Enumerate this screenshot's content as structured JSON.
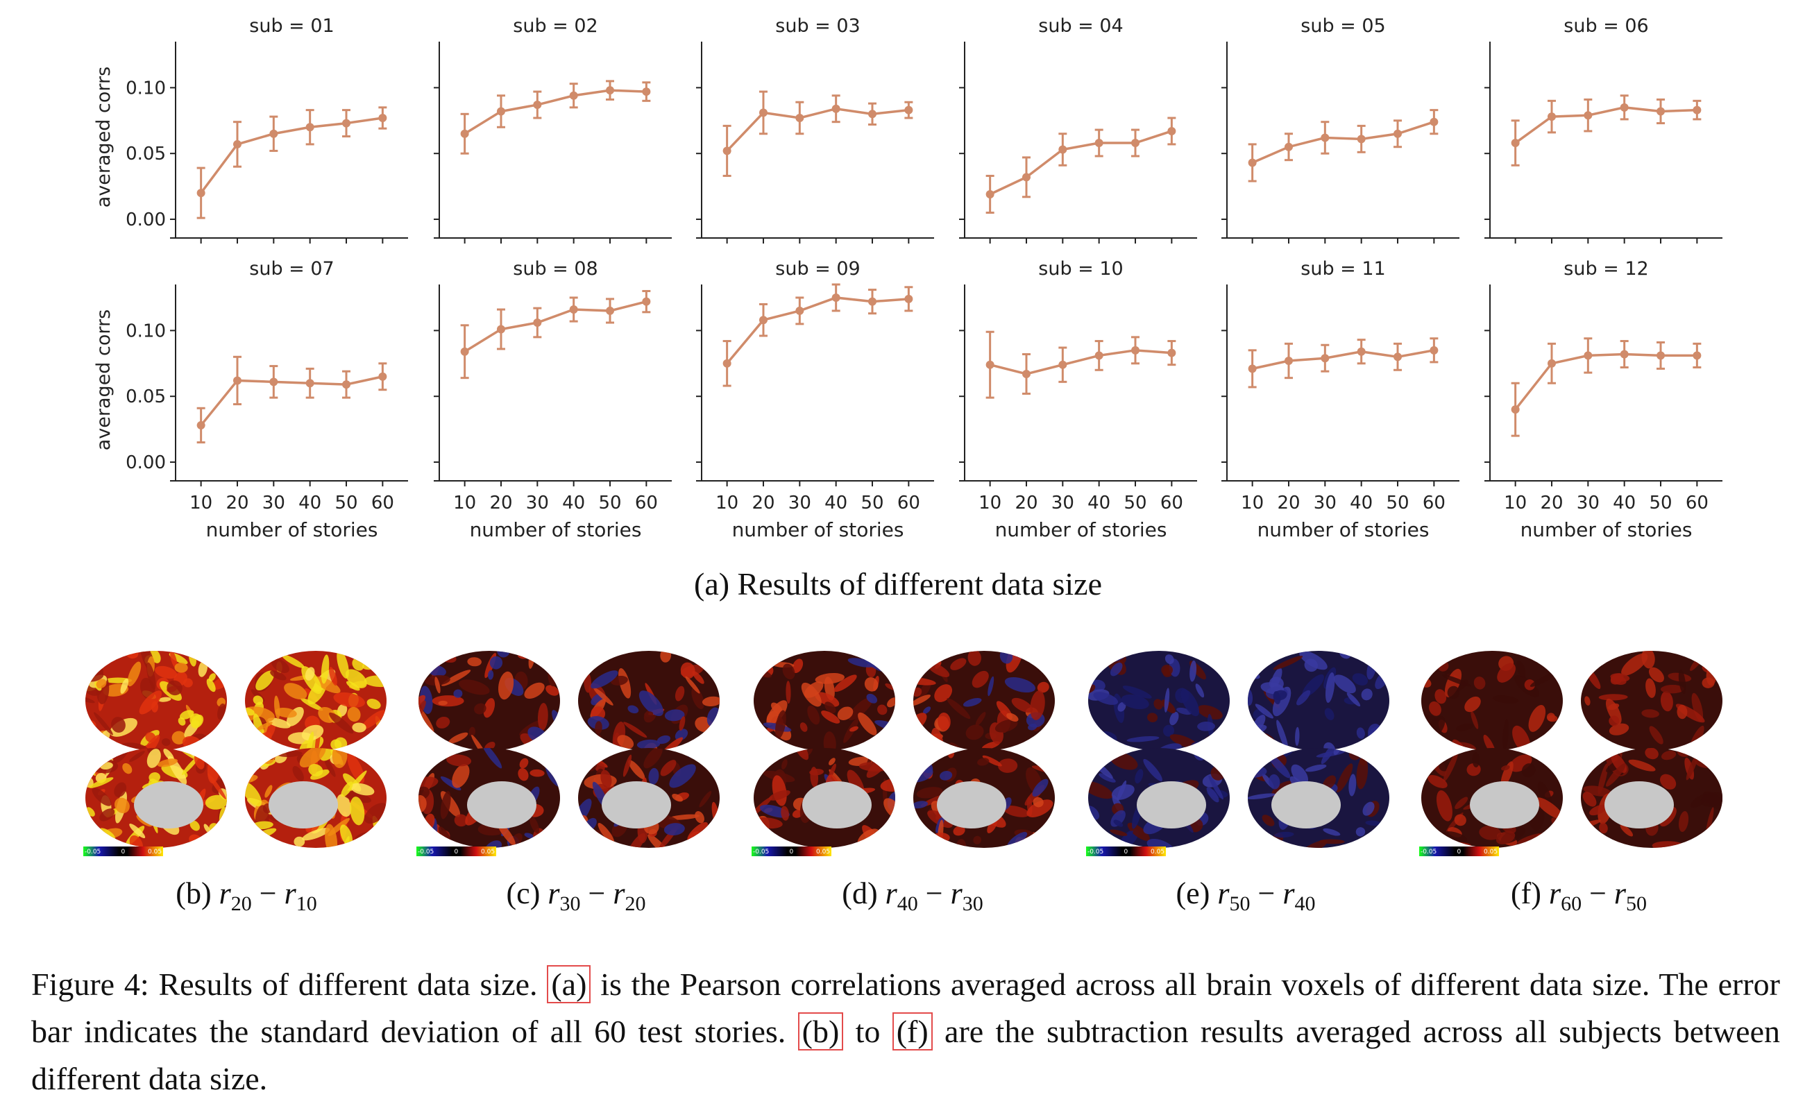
{
  "chart_data": {
    "type": "line",
    "panels_layout": "2 rows x 6 columns",
    "x": [
      10,
      20,
      30,
      40,
      50,
      60
    ],
    "xticks": [
      "10",
      "20",
      "30",
      "40",
      "50",
      "60"
    ],
    "xlabel": "number of stories",
    "ylabel": "averaged corrs",
    "yticks": [
      "0.00",
      "0.05",
      "0.10"
    ],
    "ylim": [
      -0.01,
      0.135
    ],
    "color": "#d08b6a",
    "grid": false,
    "series": [
      {
        "name": "sub = 01",
        "values": [
          0.02,
          0.057,
          0.065,
          0.07,
          0.073,
          0.077
        ],
        "err": [
          0.019,
          0.017,
          0.013,
          0.013,
          0.01,
          0.008
        ]
      },
      {
        "name": "sub = 02",
        "values": [
          0.065,
          0.082,
          0.087,
          0.094,
          0.098,
          0.097
        ],
        "err": [
          0.015,
          0.012,
          0.01,
          0.009,
          0.007,
          0.007
        ]
      },
      {
        "name": "sub = 03",
        "values": [
          0.052,
          0.081,
          0.077,
          0.084,
          0.08,
          0.083
        ],
        "err": [
          0.019,
          0.016,
          0.012,
          0.01,
          0.008,
          0.006
        ]
      },
      {
        "name": "sub = 04",
        "values": [
          0.019,
          0.032,
          0.053,
          0.058,
          0.058,
          0.067
        ],
        "err": [
          0.014,
          0.015,
          0.012,
          0.01,
          0.01,
          0.01
        ]
      },
      {
        "name": "sub = 05",
        "values": [
          0.043,
          0.055,
          0.062,
          0.061,
          0.065,
          0.074
        ],
        "err": [
          0.014,
          0.01,
          0.012,
          0.01,
          0.01,
          0.009
        ]
      },
      {
        "name": "sub = 06",
        "values": [
          0.058,
          0.078,
          0.079,
          0.085,
          0.082,
          0.083
        ],
        "err": [
          0.017,
          0.012,
          0.012,
          0.009,
          0.009,
          0.007
        ]
      },
      {
        "name": "sub = 07",
        "values": [
          0.028,
          0.062,
          0.061,
          0.06,
          0.059,
          0.065
        ],
        "err": [
          0.013,
          0.018,
          0.012,
          0.011,
          0.01,
          0.01
        ]
      },
      {
        "name": "sub = 08",
        "values": [
          0.084,
          0.101,
          0.106,
          0.116,
          0.115,
          0.122
        ],
        "err": [
          0.02,
          0.015,
          0.011,
          0.009,
          0.009,
          0.008
        ]
      },
      {
        "name": "sub = 09",
        "values": [
          0.075,
          0.108,
          0.115,
          0.125,
          0.122,
          0.124
        ],
        "err": [
          0.017,
          0.012,
          0.01,
          0.01,
          0.009,
          0.009
        ]
      },
      {
        "name": "sub = 10",
        "values": [
          0.074,
          0.067,
          0.074,
          0.081,
          0.085,
          0.083
        ],
        "err": [
          0.025,
          0.015,
          0.013,
          0.011,
          0.01,
          0.009
        ]
      },
      {
        "name": "sub = 11",
        "values": [
          0.071,
          0.077,
          0.079,
          0.084,
          0.08,
          0.085
        ],
        "err": [
          0.014,
          0.013,
          0.01,
          0.009,
          0.01,
          0.009
        ]
      },
      {
        "name": "sub = 12",
        "values": [
          0.04,
          0.075,
          0.081,
          0.082,
          0.081,
          0.081
        ],
        "err": [
          0.02,
          0.015,
          0.013,
          0.01,
          0.01,
          0.009
        ]
      }
    ]
  },
  "captions": {
    "a": "(a) Results of different data size"
  },
  "brain_maps": [
    {
      "label_prefix": "(b) ",
      "r1": "20",
      "r2": "10",
      "intensity": "high",
      "scale": [
        "-0.05",
        "0",
        "0.05"
      ]
    },
    {
      "label_prefix": "(c) ",
      "r1": "30",
      "r2": "20",
      "intensity": "medium",
      "scale": [
        "-0.05",
        "0",
        "0.05"
      ]
    },
    {
      "label_prefix": "(d) ",
      "r1": "40",
      "r2": "30",
      "intensity": "medium",
      "scale": [
        "-0.05",
        "0",
        "0.05"
      ]
    },
    {
      "label_prefix": "(e) ",
      "r1": "50",
      "r2": "40",
      "intensity": "low",
      "scale": [
        "-0.05",
        "0",
        "0.05"
      ]
    },
    {
      "label_prefix": "(f) ",
      "r1": "60",
      "r2": "50",
      "intensity": "medium-low",
      "scale": [
        "-0.05",
        "0",
        "0.05"
      ]
    }
  ],
  "figure_caption": {
    "part1": "Figure 4: Results of different data size. ",
    "ref_a": "(a)",
    "part2": " is the Pearson correlations averaged across all brain voxels of different data size. The error bar indicates the standard deviation of all 60 test stories. ",
    "ref_b": "(b)",
    "part3": " to ",
    "ref_f": "(f)",
    "part4": " are the subtraction results averaged across all subjects between different data size."
  },
  "colors": {
    "line": "#d08b6a",
    "brain_dark": "#2a0d0a",
    "brain_red": "#9b1a0c",
    "brain_yellow": "#f5e21a",
    "brain_blue": "#2a2a8a",
    "brain_gray": "#c8c8c8",
    "ref_box": "#e34b4b"
  }
}
